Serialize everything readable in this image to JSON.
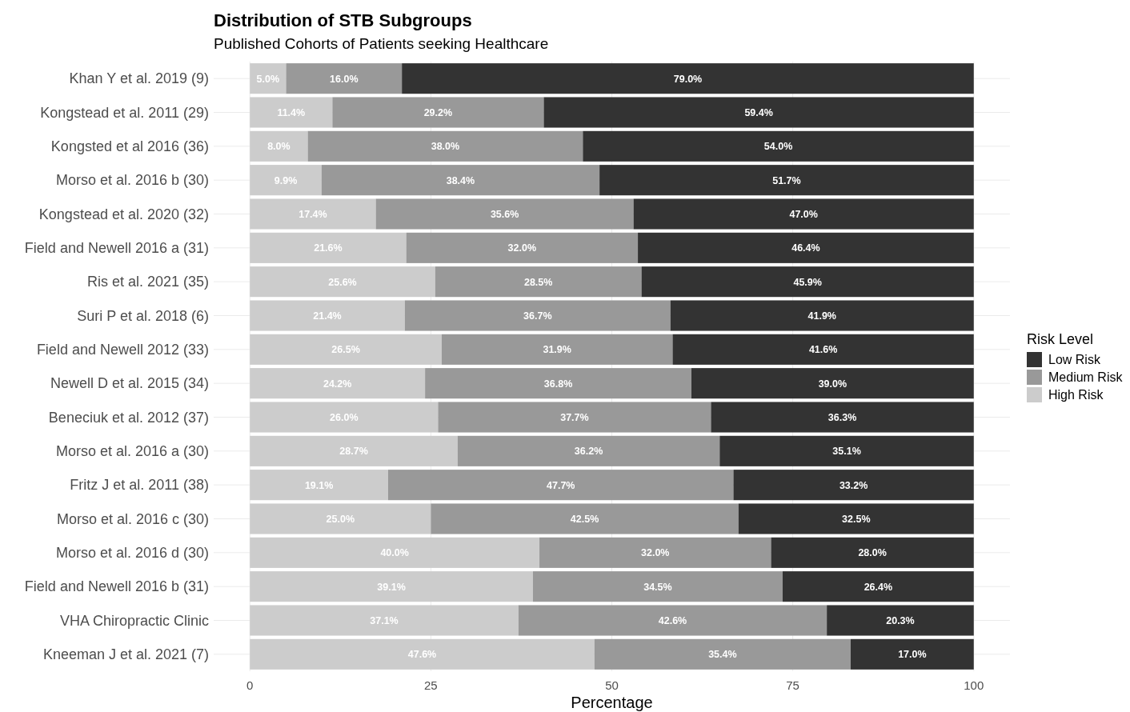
{
  "chart_data": {
    "type": "bar",
    "orientation": "horizontal",
    "stacked": true,
    "title": "Distribution of STB Subgroups",
    "subtitle": "Published Cohorts of Patients seeking Healthcare",
    "xlabel": "Percentage",
    "legend_title": "Risk Level",
    "legend": "right",
    "grid": true,
    "xlim": [
      -5,
      105
    ],
    "xticks": [
      0,
      25,
      50,
      75,
      100
    ],
    "categories": [
      "Khan Y et al. 2019 (9)",
      "Kongstead et al. 2011 (29)",
      "Kongsted et al 2016 (36)",
      "Morso et al. 2016 b (30)",
      "Kongstead et al. 2020 (32)",
      "Field and Newell 2016 a (31)",
      "Ris et al. 2021 (35)",
      "Suri P et al. 2018 (6)",
      "Field and Newell 2012 (33)",
      "Newell D et al. 2015 (34)",
      "Beneciuk et al. 2012 (37)",
      "Morso et al. 2016 a (30)",
      "Fritz J et al. 2011 (38)",
      "Morso et al. 2016 c (30)",
      "Morso et al. 2016 d (30)",
      "Field and Newell 2016 b (31)",
      "VHA Chiropractic Clinic",
      "Kneeman J et al. 2021 (7)"
    ],
    "series": [
      {
        "name": "High Risk",
        "color": "#cccccc",
        "values": [
          5.0,
          11.4,
          8.0,
          9.9,
          17.4,
          21.6,
          25.6,
          21.4,
          26.5,
          24.2,
          26.0,
          28.7,
          19.1,
          25.0,
          40.0,
          39.1,
          37.1,
          47.6
        ],
        "value_labels": [
          "5.0%",
          "11.4%",
          "8.0%",
          "9.9%",
          "17.4%",
          "21.6%",
          "25.6%",
          "21.4%",
          "26.5%",
          "24.2%",
          "26.0%",
          "28.7%",
          "19.1%",
          "25.0%",
          "40.0%",
          "39.1%",
          "37.1%",
          "47.6%"
        ]
      },
      {
        "name": "Medium Risk",
        "color": "#999999",
        "values": [
          16.0,
          29.2,
          38.0,
          38.4,
          35.6,
          32.0,
          28.5,
          36.7,
          31.9,
          36.8,
          37.7,
          36.2,
          47.7,
          42.5,
          32.0,
          34.5,
          42.6,
          35.4
        ],
        "value_labels": [
          "16.0%",
          "29.2%",
          "38.0%",
          "38.4%",
          "35.6%",
          "32.0%",
          "28.5%",
          "36.7%",
          "31.9%",
          "36.8%",
          "37.7%",
          "36.2%",
          "47.7%",
          "42.5%",
          "32.0%",
          "34.5%",
          "42.6%",
          "35.4%"
        ]
      },
      {
        "name": "Low Risk",
        "color": "#333333",
        "values": [
          79.0,
          59.4,
          54.0,
          51.7,
          47.0,
          46.4,
          45.9,
          41.9,
          41.6,
          39.0,
          36.3,
          35.1,
          33.2,
          32.5,
          28.0,
          26.4,
          20.3,
          17.0
        ],
        "value_labels": [
          "79.0%",
          "59.4%",
          "54.0%",
          "51.7%",
          "47.0%",
          "46.4%",
          "45.9%",
          "41.9%",
          "41.6%",
          "39.0%",
          "36.3%",
          "35.1%",
          "33.2%",
          "32.5%",
          "28.0%",
          "26.4%",
          "20.3%",
          "17.0%"
        ]
      }
    ]
  }
}
